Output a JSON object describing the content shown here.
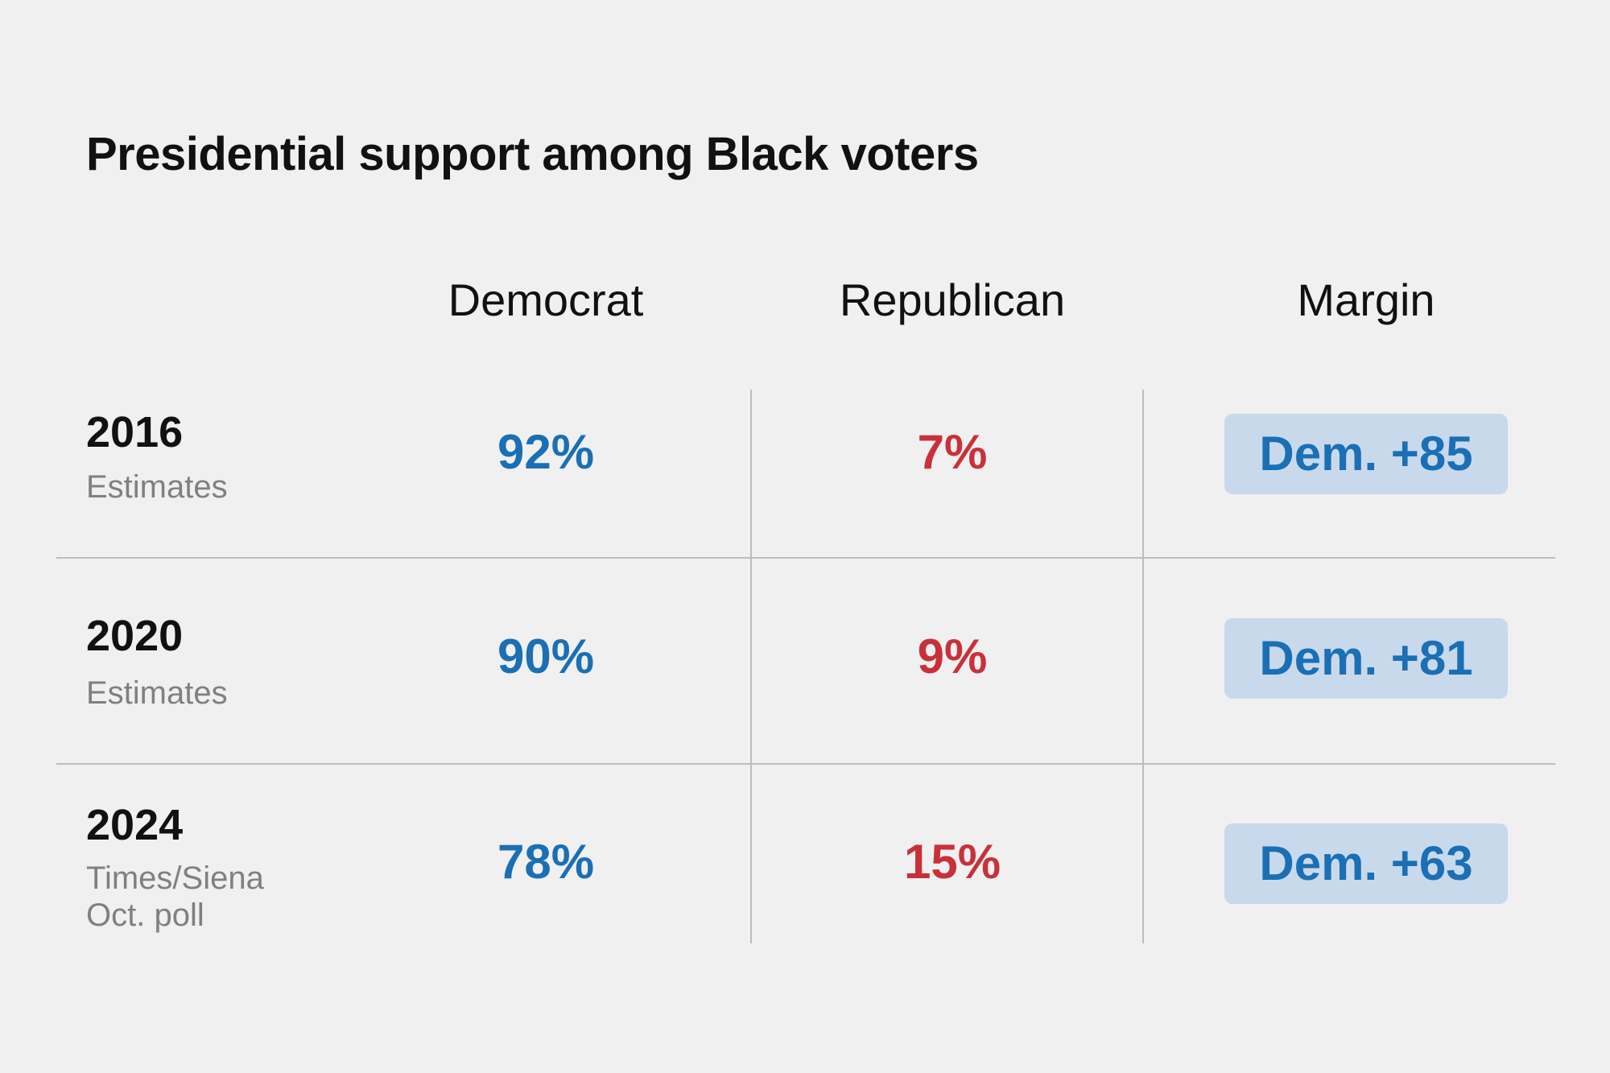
{
  "chart_data": {
    "type": "table",
    "title": "Presidential support among Black voters",
    "columns": [
      "Democrat",
      "Republican",
      "Margin"
    ],
    "rows": [
      {
        "year": "2016",
        "source": "Estimates",
        "democrat": "92%",
        "republican": "7%",
        "margin": "Dem. +85"
      },
      {
        "year": "2020",
        "source": "Estimates",
        "democrat": "90%",
        "republican": "9%",
        "margin": "Dem. +81"
      },
      {
        "year": "2024",
        "source": "Times/Siena\nOct. poll",
        "democrat": "78%",
        "republican": "15%",
        "margin": "Dem. +63"
      }
    ],
    "series": [
      {
        "name": "Democrat",
        "values": [
          92,
          90,
          78
        ]
      },
      {
        "name": "Republican",
        "values": [
          7,
          9,
          15
        ]
      },
      {
        "name": "Margin",
        "values": [
          85,
          81,
          63
        ]
      }
    ],
    "colors": {
      "democrat": "#1a6fb5",
      "republican": "#c8313a",
      "margin_badge_bg": "#c9d9ec",
      "background": "#f0f0f0"
    }
  }
}
